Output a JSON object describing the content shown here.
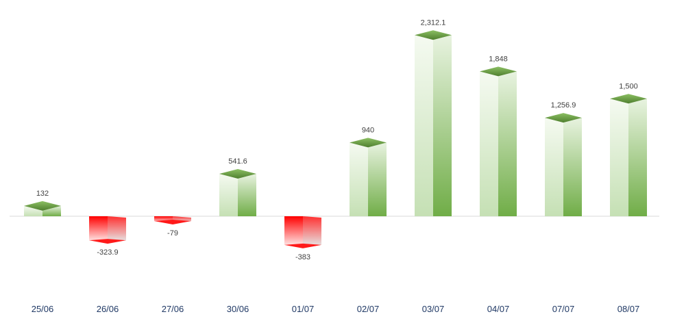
{
  "chart_data": {
    "type": "bar",
    "title": "",
    "xlabel": "",
    "ylabel": "",
    "categories": [
      "25/06",
      "26/06",
      "27/06",
      "30/06",
      "01/07",
      "02/07",
      "03/07",
      "04/07",
      "07/07",
      "08/07"
    ],
    "values": [
      132,
      -323.9,
      -79,
      541.6,
      -383,
      940,
      2312.1,
      1848,
      1256.9,
      1500
    ],
    "data_labels": [
      "132",
      "-323.9",
      "-79",
      "541.6",
      "-383",
      "940",
      "2,312.1",
      "1,848",
      "1,256.9",
      "1,500"
    ],
    "ylim": [
      -1350,
      2750
    ],
    "grid": false,
    "legend": "none",
    "colors": {
      "positive": "#70ad47",
      "negative": "#ff0000",
      "axis": "#d9d9d9",
      "category_label": "#1f3864"
    }
  }
}
